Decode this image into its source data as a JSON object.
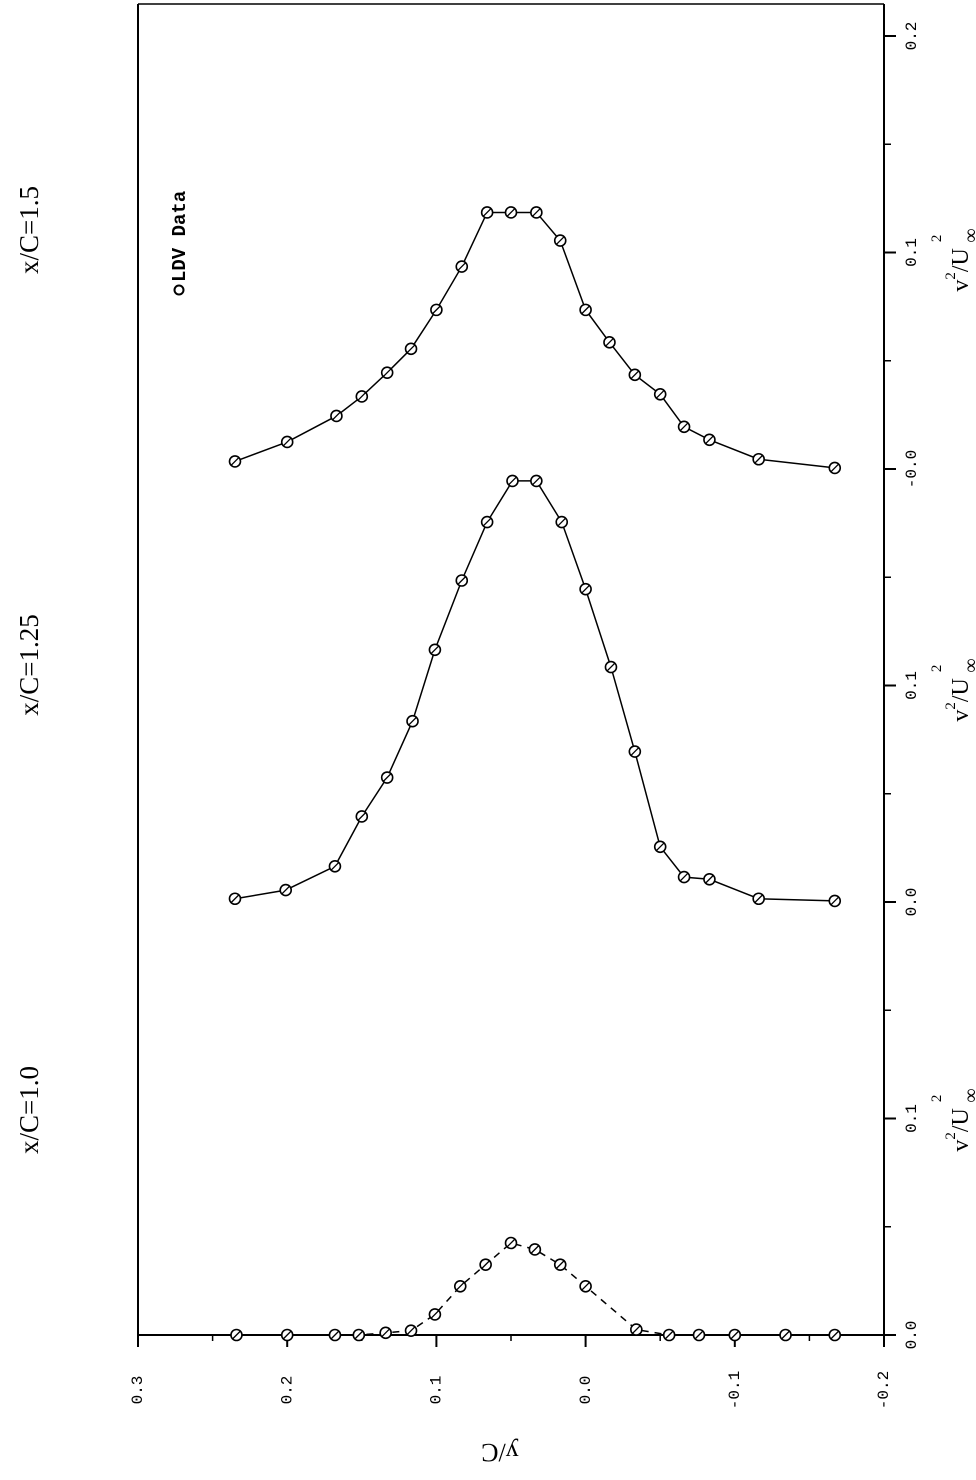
{
  "chart_data": {
    "type": "line",
    "orientation": "rotated-90-ccw",
    "y_axis": {
      "label": "y/C",
      "range": [
        -0.2,
        0.3
      ],
      "ticks": [
        "0.3",
        "0.2",
        "0.1",
        "0.0",
        "-0.1",
        "-0.2"
      ]
    },
    "x_axis": {
      "label_base": "v",
      "label_sup1": "2",
      "label_mid": "/U",
      "label_sup2": "2",
      "label_sub": "∞",
      "offset_per_panel": 0.2,
      "ticks": [
        "0.0",
        "0.1",
        "0.0",
        "0.1",
        "-0.0",
        "0.1",
        "0.2"
      ]
    },
    "legend": {
      "marker": "circle",
      "text": "LDV Data"
    },
    "grid": false,
    "series": [
      {
        "name": "x/C=1.0",
        "line_style": "dashed",
        "points": [
          [
            0.234,
            0.0
          ],
          [
            0.2,
            0.0
          ],
          [
            0.168,
            0.0
          ],
          [
            0.152,
            0.0
          ],
          [
            0.134,
            0.001
          ],
          [
            0.117,
            0.002
          ],
          [
            0.101,
            0.0095
          ],
          [
            0.084,
            0.0225
          ],
          [
            0.067,
            0.0325
          ],
          [
            0.05,
            0.0425
          ],
          [
            0.034,
            0.0395
          ],
          [
            0.017,
            0.0325
          ],
          [
            0.0,
            0.0225
          ],
          [
            -0.034,
            0.0025
          ],
          [
            -0.056,
            0.0
          ],
          [
            -0.076,
            0.0
          ],
          [
            -0.1,
            0.0
          ],
          [
            -0.134,
            0.0
          ],
          [
            -0.167,
            0.0
          ]
        ]
      },
      {
        "name": "x/C=1.25",
        "line_style": "solid",
        "points": [
          [
            0.235,
            0.0015
          ],
          [
            0.201,
            0.0055
          ],
          [
            0.168,
            0.0165
          ],
          [
            0.15,
            0.0395
          ],
          [
            0.133,
            0.0575
          ],
          [
            0.116,
            0.0835
          ],
          [
            0.101,
            0.1165
          ],
          [
            0.083,
            0.1485
          ],
          [
            0.066,
            0.1755
          ],
          [
            0.049,
            0.1945
          ],
          [
            0.033,
            0.1945
          ],
          [
            0.016,
            0.1755
          ],
          [
            0.0,
            0.1445
          ],
          [
            -0.017,
            0.1085
          ],
          [
            -0.033,
            0.0695
          ],
          [
            -0.05,
            0.0255
          ],
          [
            -0.066,
            0.0115
          ],
          [
            -0.083,
            0.0105
          ],
          [
            -0.116,
            0.0015
          ],
          [
            -0.167,
            0.0005
          ]
        ]
      },
      {
        "name": "x/C=1.5",
        "line_style": "solid",
        "points": [
          [
            0.235,
            0.0035
          ],
          [
            0.2,
            0.0125
          ],
          [
            0.167,
            0.0245
          ],
          [
            0.15,
            0.0335
          ],
          [
            0.133,
            0.0445
          ],
          [
            0.117,
            0.0555
          ],
          [
            0.1,
            0.0735
          ],
          [
            0.083,
            0.0935
          ],
          [
            0.066,
            0.1185
          ],
          [
            0.05,
            0.1185
          ],
          [
            0.033,
            0.1185
          ],
          [
            0.017,
            0.1055
          ],
          [
            0.0,
            0.0735
          ],
          [
            -0.016,
            0.0585
          ],
          [
            -0.033,
            0.0435
          ],
          [
            -0.05,
            0.0345
          ],
          [
            -0.066,
            0.0195
          ],
          [
            -0.083,
            0.0135
          ],
          [
            -0.116,
            0.0045
          ],
          [
            -0.167,
            0.0005
          ]
        ]
      }
    ]
  }
}
